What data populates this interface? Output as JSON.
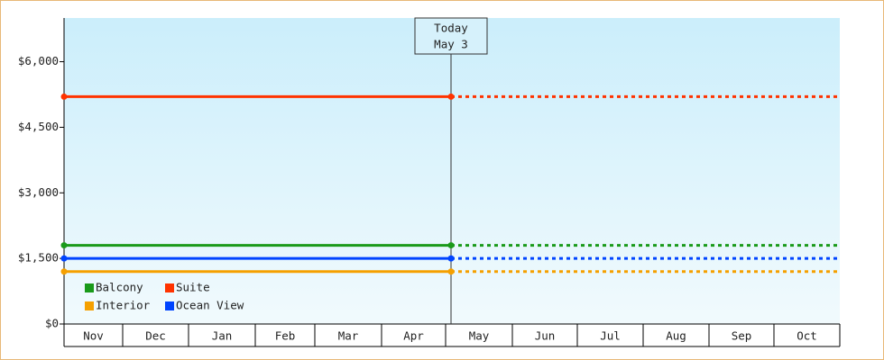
{
  "chart_data": {
    "type": "line",
    "categories": [
      "Nov",
      "Dec",
      "Jan",
      "Feb",
      "Mar",
      "Apr",
      "May",
      "Jun",
      "Jul",
      "Aug",
      "Sep",
      "Oct"
    ],
    "ylim": [
      0,
      7000
    ],
    "yticks": [
      {
        "value": 0,
        "label": "$0"
      },
      {
        "value": 1500,
        "label": "$1,500"
      },
      {
        "value": 3000,
        "label": "$3,000"
      },
      {
        "value": 4500,
        "label": "$4,500"
      },
      {
        "value": 6000,
        "label": "$6,000"
      }
    ],
    "annotation": {
      "title": "Today",
      "date": "May 3"
    },
    "series": [
      {
        "name": "Balcony",
        "color": "#1a9a1a",
        "value": 1800
      },
      {
        "name": "Suite",
        "color": "#ff3300",
        "value": 5200
      },
      {
        "name": "Interior",
        "color": "#f5a000",
        "value": 1200
      },
      {
        "name": "Ocean View",
        "color": "#0044ff",
        "value": 1500
      }
    ]
  }
}
